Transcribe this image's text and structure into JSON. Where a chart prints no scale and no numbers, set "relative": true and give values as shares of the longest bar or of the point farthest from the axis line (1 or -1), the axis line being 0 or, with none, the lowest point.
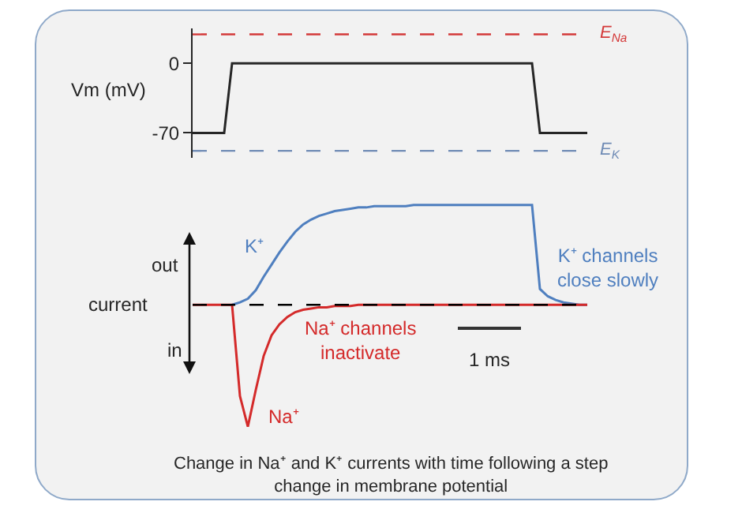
{
  "chart_data": [
    {
      "type": "line",
      "ylabel": "Vm (mV)",
      "categories": [
        null,
        null,
        null,
        null,
        null,
        null,
        null,
        null,
        null,
        null,
        null,
        null,
        null,
        null,
        null,
        null,
        null,
        null,
        null,
        null,
        null,
        null,
        null,
        null,
        null,
        null,
        null,
        null,
        null,
        null,
        null,
        null,
        null,
        null,
        null,
        null,
        null,
        null,
        null,
        null,
        null,
        null,
        null,
        null,
        null,
        null,
        null,
        null,
        null,
        null,
        null
      ],
      "ylim": [
        -95,
        35
      ],
      "yticks": [
        0,
        -70
      ],
      "tick_labels": "y",
      "legend": false,
      "marker": "none",
      "series": [
        {
          "color": "#262626",
          "values": [
            -70,
            -70,
            -70,
            -70,
            -70,
            0,
            0,
            0,
            0,
            0,
            0,
            0,
            0,
            0,
            0,
            0,
            0,
            0,
            0,
            0,
            0,
            0,
            0,
            0,
            0,
            0,
            0,
            0,
            0,
            0,
            0,
            0,
            0,
            0,
            0,
            0,
            0,
            0,
            0,
            0,
            0,
            0,
            0,
            0,
            -70,
            -70,
            -70,
            -70,
            -70,
            -70,
            -70
          ]
        }
      ],
      "ref_lines": [
        {
          "axis": "y",
          "value": 29,
          "label": "E$_{Na}$",
          "color": "#d43a3a",
          "line_style": "dashed"
        },
        {
          "axis": "y",
          "value": -88,
          "label": "E$_{K}$",
          "color": "#6f8bb5",
          "line_style": "dashed"
        }
      ]
    },
    {
      "type": "line",
      "relative": true,
      "title": "Change in Na⁺ and K⁺ currents with time following a step\nchange in membrane potential",
      "ylabel": "current",
      "categories": [
        null,
        null,
        null,
        null,
        null,
        null,
        null,
        null,
        null,
        null,
        null,
        null,
        null,
        null,
        null,
        null,
        null,
        null,
        null,
        null,
        null,
        null,
        null,
        null,
        null,
        null,
        null,
        null,
        null,
        null,
        null,
        null,
        null,
        null,
        null,
        null,
        null,
        null,
        null,
        null,
        null,
        null,
        null,
        null,
        null,
        null,
        null,
        null,
        null,
        null,
        null
      ],
      "tick_labels": false,
      "legend": false,
      "marker": "none",
      "series": [
        {
          "name": "K⁺",
          "color": "#4f7fbf",
          "values": [
            null,
            null,
            null,
            null,
            null,
            0,
            0.02,
            0.05,
            0.12,
            0.23,
            0.33,
            0.43,
            0.52,
            0.6,
            0.66,
            0.7,
            0.73,
            0.75,
            0.77,
            0.78,
            0.79,
            0.8,
            0.8,
            0.81,
            0.81,
            0.81,
            0.81,
            0.81,
            0.82,
            0.82,
            0.82,
            0.82,
            0.82,
            0.82,
            0.82,
            0.82,
            0.82,
            0.82,
            0.82,
            0.82,
            0.82,
            0.82,
            0.82,
            0.82,
            0.13,
            0.07,
            0.04,
            0.02,
            0.01,
            0,
            0
          ]
        },
        {
          "name": "Na⁺",
          "color": "#d42a2a",
          "values": [
            0,
            0,
            0,
            0,
            0,
            0,
            -0.75,
            -1,
            -0.7,
            -0.42,
            -0.25,
            -0.16,
            -0.1,
            -0.06,
            -0.04,
            -0.03,
            -0.02,
            -0.02,
            -0.01,
            -0.01,
            -0.01,
            0,
            0,
            0,
            0,
            0,
            0,
            0,
            0,
            0,
            0,
            0,
            0,
            0,
            0,
            0,
            0,
            0,
            0,
            0,
            0,
            0,
            0,
            0,
            0,
            0,
            0,
            0,
            0,
            0,
            0
          ]
        }
      ],
      "ref_lines": [
        {
          "axis": "y",
          "value": 0,
          "color": "#000000",
          "line_style": "dashed"
        }
      ],
      "annotations": [
        "out",
        "in",
        "Na⁺ channels\ninactivate",
        "K⁺ channels\nclose slowly",
        "1 ms"
      ]
    }
  ]
}
